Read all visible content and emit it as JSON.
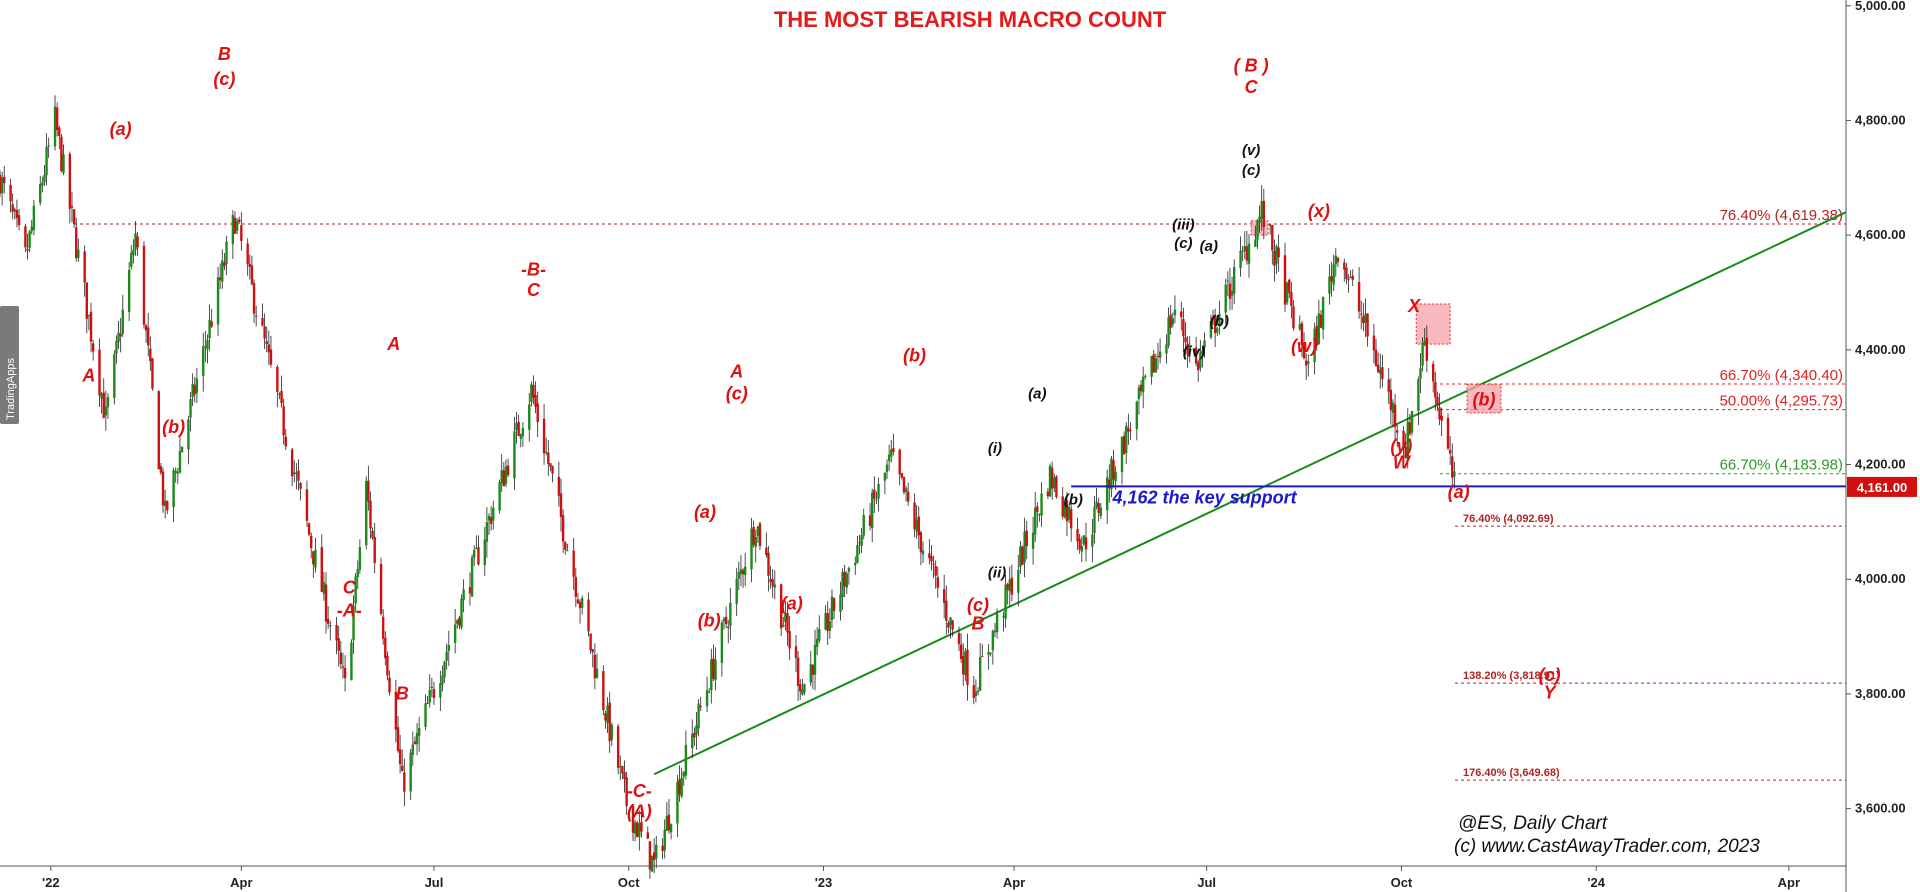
{
  "chart_data": {
    "type": "candlestick",
    "title": "THE MOST BEARISH MACRO COUNT",
    "subtitle": "",
    "xlabel": "",
    "ylabel": "",
    "symbol_caption": "@ES,  Daily Chart",
    "copyright": "(c) www.CastAwayTrader.com, 2023",
    "sidebar_label": "TradingApps",
    "ylim": [
      3500,
      5010
    ],
    "xlim": [
      "2021-12-08",
      "2024-04-28"
    ],
    "y_ticks": [
      {
        "v": 3600,
        "label": "3,600.00"
      },
      {
        "v": 3800,
        "label": "3,800.00"
      },
      {
        "v": 4000,
        "label": "4,000.00"
      },
      {
        "v": 4200,
        "label": "4,200.00"
      },
      {
        "v": 4400,
        "label": "4,400.00"
      },
      {
        "v": 4600,
        "label": "4,600.00"
      },
      {
        "v": 4800,
        "label": "4,800.00"
      },
      {
        "v": 5000,
        "label": "5,000.00"
      }
    ],
    "x_ticks": [
      {
        "d": "2022-01-01",
        "label": "'22"
      },
      {
        "d": "2022-04-01",
        "label": "Apr"
      },
      {
        "d": "2022-07-01",
        "label": "Jul"
      },
      {
        "d": "2022-10-01",
        "label": "Oct"
      },
      {
        "d": "2023-01-01",
        "label": "'23"
      },
      {
        "d": "2023-04-01",
        "label": "Apr"
      },
      {
        "d": "2023-07-01",
        "label": "Jul"
      },
      {
        "d": "2023-10-01",
        "label": "Oct"
      },
      {
        "d": "2024-01-01",
        "label": "'24"
      },
      {
        "d": "2024-04-01",
        "label": "Apr"
      }
    ],
    "last_price": {
      "value": 4161.0,
      "label": "4,161.00"
    },
    "price_path": [
      [
        "2021-12-08",
        4700
      ],
      [
        "2021-12-20",
        4560
      ],
      [
        "2022-01-03",
        4800
      ],
      [
        "2022-01-27",
        4280
      ],
      [
        "2022-02-10",
        4600
      ],
      [
        "2022-02-24",
        4110
      ],
      [
        "2022-03-29",
        4630
      ],
      [
        "2022-05-20",
        3810
      ],
      [
        "2022-05-30",
        4160
      ],
      [
        "2022-06-16",
        3640
      ],
      [
        "2022-08-16",
        4330
      ],
      [
        "2022-09-30",
        3610
      ],
      [
        "2022-10-13",
        3500
      ],
      [
        "2022-11-30",
        4100
      ],
      [
        "2022-12-22",
        3810
      ],
      [
        "2023-02-02",
        4210
      ],
      [
        "2023-03-13",
        3810
      ],
      [
        "2023-04-18",
        4180
      ],
      [
        "2023-05-04",
        4060
      ],
      [
        "2023-06-16",
        4470
      ],
      [
        "2023-06-26",
        4370
      ],
      [
        "2023-07-27",
        4640
      ],
      [
        "2023-08-18",
        4370
      ],
      [
        "2023-09-01",
        4580
      ],
      [
        "2023-10-03",
        4230
      ],
      [
        "2023-10-12",
        4420
      ],
      [
        "2023-10-26",
        4161
      ]
    ],
    "horizontal_levels": [
      {
        "value": 4619.38,
        "label": "76.40% (4,619.38)",
        "color": "#b22222",
        "label_size": "normal"
      },
      {
        "value": 4340.4,
        "label": "66.70% (4,340.40)",
        "color": "#dd2222",
        "label_size": "normal"
      },
      {
        "value": 4295.73,
        "label": "50.00% (4,295.73)",
        "color": "#dd2222",
        "label_size": "normal"
      },
      {
        "value": 4183.98,
        "label": "66.70% (4,183.98)",
        "color": "#2a9a2a",
        "label_size": "normal"
      },
      {
        "value": 4092.69,
        "label": "76.40% (4,092.69)",
        "color": "#b22222",
        "label_size": "small"
      },
      {
        "value": 3818.91,
        "label": "138.20% (3,818.91)",
        "color": "#b22222",
        "label_size": "small"
      },
      {
        "value": 3649.68,
        "label": "176.40% (3,649.68)",
        "color": "#b22222",
        "label_size": "small"
      }
    ],
    "support_line": {
      "value": 4162,
      "label": "4,162 the key support",
      "color": "#1a1acc"
    },
    "trendline": {
      "from": [
        "2022-10-13",
        3660
      ],
      "to": [
        "2024-04-28",
        4640
      ],
      "color": "#1a8a1a"
    },
    "highlight_zones": [
      {
        "d1": "2023-10-08",
        "d2": "2023-10-24",
        "y1": 4410,
        "y2": 4480,
        "label": ""
      },
      {
        "d1": "2023-11-01",
        "d2": "2023-11-17",
        "y1": 4290,
        "y2": 4340,
        "label": "(b)"
      },
      {
        "d1": "2023-07-22",
        "d2": "2023-07-30",
        "y1": 4600,
        "y2": 4625,
        "label": ""
      }
    ],
    "wave_labels": [
      {
        "d": "2022-03-24",
        "y": 4905,
        "text": "B",
        "color": "#dd1111"
      },
      {
        "d": "2022-03-24",
        "y": 4862,
        "text": "(c)",
        "color": "#dd1111"
      },
      {
        "d": "2022-02-03",
        "y": 4775,
        "text": "(a)",
        "color": "#dd1111"
      },
      {
        "d": "2022-01-19",
        "y": 4345,
        "text": "A",
        "color": "#dd1111"
      },
      {
        "d": "2022-02-28",
        "y": 4255,
        "text": "(b)",
        "color": "#dd1111"
      },
      {
        "d": "2022-08-17",
        "y": 4530,
        "text": "-B-",
        "color": "#dd1111"
      },
      {
        "d": "2022-08-17",
        "y": 4494,
        "text": "C",
        "color": "#dd1111"
      },
      {
        "d": "2022-06-12",
        "y": 4400,
        "text": "A",
        "color": "#dd1111"
      },
      {
        "d": "2022-05-22",
        "y": 3975,
        "text": "C",
        "color": "#dd1111"
      },
      {
        "d": "2022-05-22",
        "y": 3935,
        "text": "-A-",
        "color": "#dd1111"
      },
      {
        "d": "2022-06-16",
        "y": 3790,
        "text": "B",
        "color": "#dd1111"
      },
      {
        "d": "2022-10-06",
        "y": 3620,
        "text": "-C-",
        "color": "#dd1111"
      },
      {
        "d": "2022-10-06",
        "y": 3585,
        "text": "(A)",
        "color": "#dd1111"
      },
      {
        "d": "2022-11-21",
        "y": 4352,
        "text": "A",
        "color": "#dd1111"
      },
      {
        "d": "2022-11-21",
        "y": 4313,
        "text": "(c)",
        "color": "#dd1111"
      },
      {
        "d": "2022-11-06",
        "y": 4107,
        "text": "(a)",
        "color": "#dd1111"
      },
      {
        "d": "2022-11-08",
        "y": 3918,
        "text": "(b)",
        "color": "#dd1111"
      },
      {
        "d": "2022-12-17",
        "y": 3947,
        "text": "(a)",
        "color": "#dd1111"
      },
      {
        "d": "2023-02-13",
        "y": 4380,
        "text": "(b)",
        "color": "#dd1111"
      },
      {
        "d": "2023-03-15",
        "y": 3945,
        "text": "(c)",
        "color": "#dd1111"
      },
      {
        "d": "2023-03-15",
        "y": 3912,
        "text": "B",
        "color": "#dd1111"
      },
      {
        "d": "2023-07-22",
        "y": 4885,
        "text": "( B )",
        "color": "#dd1111"
      },
      {
        "d": "2023-07-22",
        "y": 4848,
        "text": "C",
        "color": "#dd1111"
      },
      {
        "d": "2023-08-23",
        "y": 4632,
        "text": "(x)",
        "color": "#dd1111"
      },
      {
        "d": "2023-08-16",
        "y": 4396,
        "text": "(w)",
        "color": "#dd1111"
      },
      {
        "d": "2023-10-07",
        "y": 4466,
        "text": "X",
        "color": "#dd1111"
      },
      {
        "d": "2023-10-01",
        "y": 4222,
        "text": "(y)",
        "color": "#dd1111"
      },
      {
        "d": "2023-10-01",
        "y": 4193,
        "text": "W",
        "color": "#dd1111"
      },
      {
        "d": "2023-10-28",
        "y": 4142,
        "text": "(a)",
        "color": "#dd1111"
      },
      {
        "d": "2023-12-10",
        "y": 3823,
        "text": "(c)",
        "color": "#dd1111"
      },
      {
        "d": "2023-12-10",
        "y": 3792,
        "text": "Y",
        "color": "#dd1111"
      },
      {
        "d": "2023-07-22",
        "y": 4740,
        "text": "(v)",
        "color": "#111111"
      },
      {
        "d": "2023-07-22",
        "y": 4705,
        "text": "(c)",
        "color": "#111111"
      },
      {
        "d": "2023-06-20",
        "y": 4610,
        "text": "(iii)",
        "color": "#111111"
      },
      {
        "d": "2023-06-20",
        "y": 4578,
        "text": "(c)",
        "color": "#111111"
      },
      {
        "d": "2023-07-02",
        "y": 4572,
        "text": "(a)",
        "color": "#111111"
      },
      {
        "d": "2023-07-07",
        "y": 4442,
        "text": "(b)",
        "color": "#111111"
      },
      {
        "d": "2023-06-25",
        "y": 4388,
        "text": "(iv)",
        "color": "#111111"
      },
      {
        "d": "2023-04-12",
        "y": 4315,
        "text": "(a)",
        "color": "#111111"
      },
      {
        "d": "2023-03-23",
        "y": 4220,
        "text": "(i)",
        "color": "#111111"
      },
      {
        "d": "2023-04-29",
        "y": 4130,
        "text": "(b)",
        "color": "#111111"
      },
      {
        "d": "2023-03-24",
        "y": 4003,
        "text": "(ii)",
        "color": "#111111"
      }
    ]
  }
}
